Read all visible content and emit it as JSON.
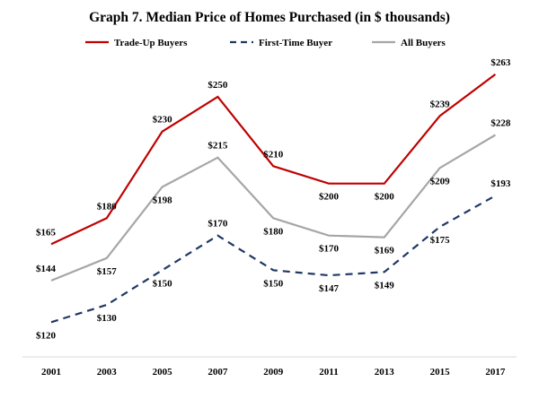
{
  "colors": {
    "trade_up": "#C00000",
    "first_time": "#1F3864",
    "all_buyers": "#A6A6A6",
    "text": "#000000",
    "axis": "#D9D9D9"
  },
  "chart_data": {
    "type": "line",
    "title": "Graph 7. Median Price of Homes Purchased (in $ thousands)",
    "xlabel": "",
    "ylabel": "",
    "categories": [
      "2001",
      "2003",
      "2005",
      "2007",
      "2009",
      "2011",
      "2013",
      "2015",
      "2017"
    ],
    "ylim": [
      100,
      280
    ],
    "grid": false,
    "legend_position": "top",
    "series": [
      {
        "name": "Trade-Up Buyers",
        "style": "solid",
        "color": "#C00000",
        "values": [
          165,
          180,
          230,
          250,
          210,
          200,
          200,
          239,
          263
        ],
        "labels": [
          "$165",
          "$180",
          "$230",
          "$250",
          "$210",
          "$200",
          "$200",
          "$239",
          "$263"
        ]
      },
      {
        "name": "First-Time Buyer",
        "style": "dashed",
        "color": "#1F3864",
        "values": [
          120,
          130,
          150,
          170,
          150,
          147,
          149,
          175,
          193
        ],
        "labels": [
          "$120",
          "$130",
          "$150",
          "$170",
          "$150",
          "$147",
          "$149",
          "$175",
          "$193"
        ]
      },
      {
        "name": "All Buyers",
        "style": "solid",
        "color": "#A6A6A6",
        "values": [
          144,
          157,
          198,
          215,
          180,
          170,
          169,
          209,
          228
        ],
        "labels": [
          "$144",
          "$157",
          "$198",
          "$215",
          "$180",
          "$170",
          "$169",
          "$209",
          "$228"
        ]
      }
    ]
  }
}
